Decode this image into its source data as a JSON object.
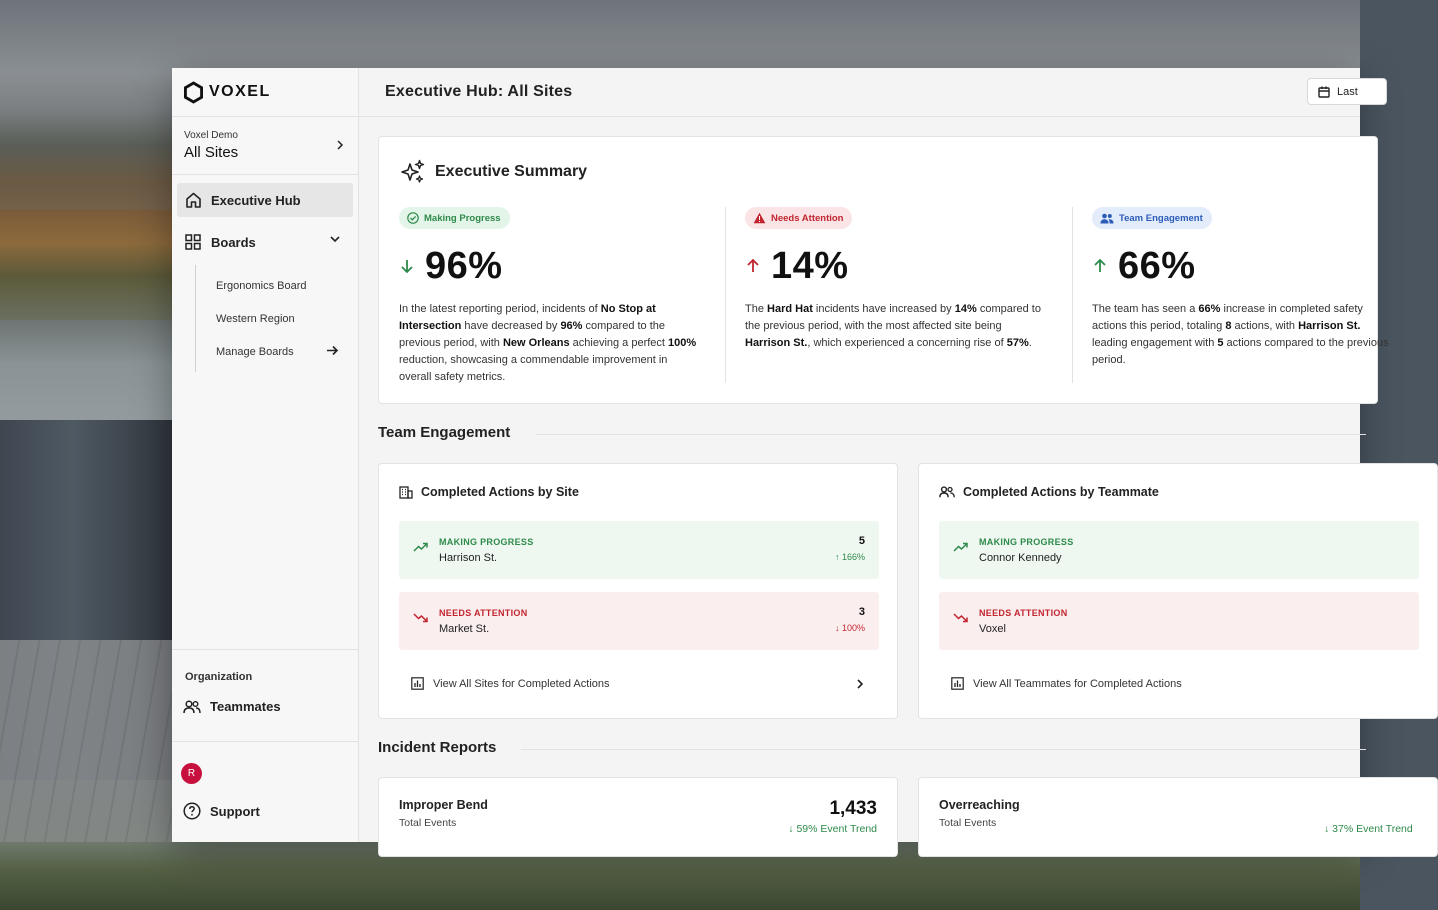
{
  "brand": {
    "name": "VOXEL"
  },
  "site_switcher": {
    "org": "Voxel Demo",
    "site": "All Sites"
  },
  "nav": {
    "executive_hub": "Executive Hub",
    "boards": "Boards",
    "board_items": [
      "Ergonomics Board",
      "Western Region",
      "Manage Boards"
    ]
  },
  "sidebar_bottom": {
    "organization_label": "Organization",
    "teammates": "Teammates",
    "avatar_initial": "R",
    "support": "Support"
  },
  "header": {
    "title": "Executive Hub: All Sites",
    "date_button": "Last"
  },
  "summary": {
    "title": "Executive Summary",
    "columns": [
      {
        "pill": "Making Progress",
        "value": "96%",
        "direction": "down",
        "desc_parts": [
          "In the latest reporting period, incidents of ",
          "No Stop at Intersection",
          " have decreased by ",
          "96%",
          " compared to the previous period, with ",
          "New Orleans",
          " achieving a perfect ",
          "100%",
          " reduction, showcasing a commendable improvement in overall safety metrics."
        ]
      },
      {
        "pill": "Needs Attention",
        "value": "14%",
        "direction": "up",
        "desc_parts": [
          "The ",
          "Hard Hat",
          " incidents have increased by ",
          "14%",
          " compared to the previous period, with the most affected site being ",
          "Harrison St.",
          ", which experienced a concerning rise of ",
          "57%",
          "."
        ]
      },
      {
        "pill": "Team Engagement",
        "value": "66%",
        "direction": "up",
        "desc_parts": [
          "The team has seen a ",
          "66%",
          " increase in completed safety actions this period, totaling ",
          "8",
          " actions, with ",
          "Harrison St.",
          " leading engagement with ",
          "5",
          " actions compared to the previous period.",
          ""
        ]
      }
    ]
  },
  "team_engagement": {
    "section_title": "Team Engagement",
    "by_site": {
      "title": "Completed Actions by Site",
      "good": {
        "status": "MAKING PROGRESS",
        "name": "Harrison St.",
        "count": "5",
        "change": "166%"
      },
      "bad": {
        "status": "NEEDS ATTENTION",
        "name": "Market St.",
        "count": "3",
        "change": "100%"
      },
      "link": "View All Sites for Completed Actions"
    },
    "by_teammate": {
      "title": "Completed Actions by Teammate",
      "good": {
        "status": "MAKING PROGRESS",
        "name": "Connor Kennedy"
      },
      "bad": {
        "status": "NEEDS ATTENTION",
        "name": "Voxel"
      },
      "link": "View All Teammates for Completed Actions"
    }
  },
  "incident_reports": {
    "section_title": "Incident Reports",
    "cards": [
      {
        "title": "Improper Bend",
        "sub": "Total Events",
        "count": "1,433",
        "trend": "↓ 59% Event Trend"
      },
      {
        "title": "Overreaching",
        "sub": "Total Events",
        "count": "",
        "trend": "↓ 37% Event Trend"
      }
    ]
  },
  "colors": {
    "green": "#2e8a4a",
    "red": "#c2252f",
    "blue": "#2d5cb8",
    "avatar": "#c8103e"
  }
}
